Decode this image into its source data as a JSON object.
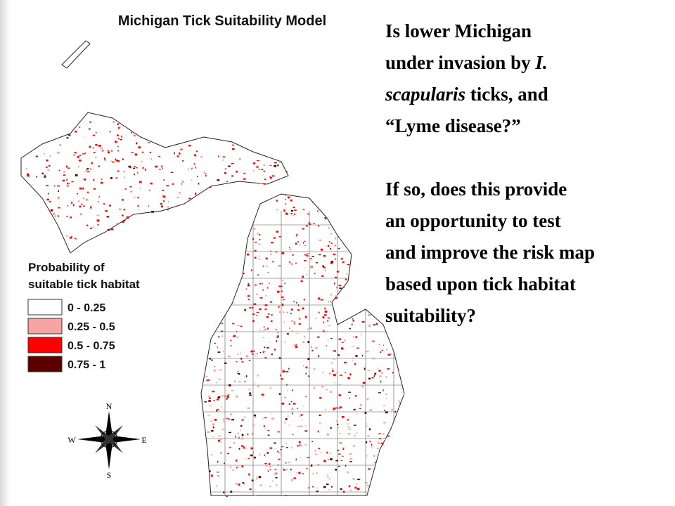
{
  "map": {
    "title": "Michigan Tick Suitability Model",
    "legend": {
      "title_lines": [
        "Probability of",
        "suitable tick habitat"
      ],
      "items": [
        {
          "label": "0 - 0.25",
          "color": "#ffffff"
        },
        {
          "label": "0.25 - 0.5",
          "color": "#f5a3a3"
        },
        {
          "label": "0.5 - 0.75",
          "color": "#ff0000"
        },
        {
          "label": "0.75 - 1",
          "color": "#5c0000"
        }
      ]
    },
    "compass": {
      "north": "N",
      "south": "S",
      "west": "W",
      "east": "E"
    }
  },
  "question": {
    "paragraphs": [
      [
        [
          {
            "text": "Is lower Michigan",
            "italic": false
          }
        ],
        [
          {
            "text": "under invasion by ",
            "italic": false
          },
          {
            "text": "I.",
            "italic": true
          }
        ],
        [
          {
            "text": "scapularis",
            "italic": true
          },
          {
            "text": " ticks, and",
            "italic": false
          }
        ],
        [
          {
            "text": "“Lyme disease?”",
            "italic": false
          }
        ]
      ],
      [
        [
          {
            "text": "If so, does this provide",
            "italic": false
          }
        ],
        [
          {
            "text": "an opportunity to test",
            "italic": false
          }
        ],
        [
          {
            "text": "and improve the risk map",
            "italic": false
          }
        ],
        [
          {
            "text": "based upon tick habitat",
            "italic": false
          }
        ],
        [
          {
            "text": "suitability?",
            "italic": false
          }
        ]
      ]
    ]
  }
}
